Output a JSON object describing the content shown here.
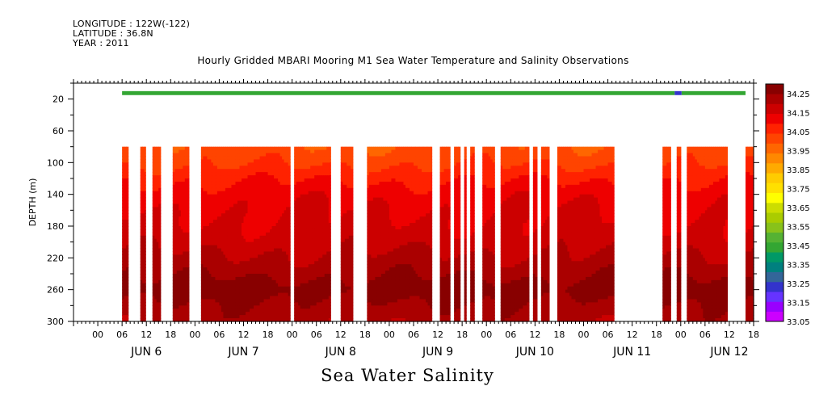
{
  "header": {
    "lines": [
      "LONGITUDE : 122W(-122)",
      "LATITUDE : 36.8N",
      "YEAR : 2011"
    ],
    "title": "Hourly Gridded MBARI Mooring M1 Sea Water Temperature and Salinity Observations"
  },
  "chart_data": {
    "type": "heatmap",
    "title": "Hourly Gridded MBARI Mooring M1 Sea Water Temperature and Salinity Observations",
    "xlabel": "",
    "ylabel": "DEPTH (m)",
    "bottom_label": "Sea Water Salinity",
    "x_unit": "hours since 2011-06-06 00:00",
    "xlim": [
      -6,
      162
    ],
    "ylim": [
      0,
      300
    ],
    "y_reversed": true,
    "y_ticks": [
      20,
      60,
      100,
      140,
      180,
      220,
      260,
      300
    ],
    "x_hour_ticks": [
      {
        "t": 0,
        "label": "00"
      },
      {
        "t": 6,
        "label": "06"
      },
      {
        "t": 12,
        "label": "12"
      },
      {
        "t": 18,
        "label": "18"
      },
      {
        "t": 24,
        "label": "00"
      },
      {
        "t": 30,
        "label": "06"
      },
      {
        "t": 36,
        "label": "12"
      },
      {
        "t": 42,
        "label": "18"
      },
      {
        "t": 48,
        "label": "00"
      },
      {
        "t": 54,
        "label": "06"
      },
      {
        "t": 60,
        "label": "12"
      },
      {
        "t": 66,
        "label": "18"
      },
      {
        "t": 72,
        "label": "00"
      },
      {
        "t": 78,
        "label": "06"
      },
      {
        "t": 84,
        "label": "12"
      },
      {
        "t": 90,
        "label": "18"
      },
      {
        "t": 96,
        "label": "00"
      },
      {
        "t": 102,
        "label": "06"
      },
      {
        "t": 108,
        "label": "12"
      },
      {
        "t": 114,
        "label": "18"
      },
      {
        "t": 120,
        "label": "00"
      },
      {
        "t": 126,
        "label": "06"
      },
      {
        "t": 132,
        "label": "12"
      },
      {
        "t": 138,
        "label": "18"
      },
      {
        "t": 144,
        "label": "00"
      },
      {
        "t": 150,
        "label": "06"
      },
      {
        "t": 156,
        "label": "12"
      },
      {
        "t": 162,
        "label": "18"
      }
    ],
    "day_labels": [
      {
        "t": 12,
        "label": "JUN  6"
      },
      {
        "t": 36,
        "label": "JUN  7"
      },
      {
        "t": 60,
        "label": "JUN  8"
      },
      {
        "t": 84,
        "label": "JUN  9"
      },
      {
        "t": 108,
        "label": "JUN 10"
      },
      {
        "t": 132,
        "label": "JUN 11"
      },
      {
        "t": 156,
        "label": "JUN 12"
      }
    ],
    "colorbar": {
      "min": 33.05,
      "max": 34.3,
      "step": 0.05,
      "labels": [
        "34.25",
        "34.15",
        "34.05",
        "33.95",
        "33.85",
        "33.75",
        "33.65",
        "33.55",
        "33.45",
        "33.35",
        "33.25",
        "33.15",
        "33.05"
      ],
      "colors": [
        "#cc00ff",
        "#9900ff",
        "#6633ff",
        "#3333cc",
        "#336699",
        "#00807f",
        "#009966",
        "#33a633",
        "#55b233",
        "#88c21a",
        "#aacc00",
        "#ccdd00",
        "#ffff00",
        "#ffe000",
        "#ffcc00",
        "#ffaa00",
        "#ff8800",
        "#ff6600",
        "#ff4400",
        "#ff2200",
        "#ee0000",
        "#cc0000",
        "#aa0000",
        "#880000"
      ]
    },
    "surface_band": {
      "depth_top": 10,
      "depth_bottom": 15,
      "value": 33.42,
      "segments": [
        [
          6,
          142.5
        ],
        [
          144.2,
          160
        ]
      ]
    },
    "valid_depth_range": [
      80,
      300
    ],
    "coverage_segments": [
      [
        6,
        7.5
      ],
      [
        10.5,
        11.8
      ],
      [
        13.5,
        15.5
      ],
      [
        18.5,
        22.5
      ],
      [
        25.5,
        47.5
      ],
      [
        48.5,
        57.5
      ],
      [
        60,
        63
      ],
      [
        66.5,
        82.5
      ],
      [
        84.5,
        87
      ],
      [
        88,
        89.5
      ],
      [
        90.5,
        91
      ],
      [
        92,
        93
      ],
      [
        95,
        98
      ],
      [
        99.5,
        106.5
      ],
      [
        107.5,
        108.5
      ],
      [
        109.5,
        111.5
      ],
      [
        113.5,
        127.5
      ],
      [
        139.5,
        141.5
      ],
      [
        143,
        144
      ],
      [
        145.5,
        155.5
      ],
      [
        160,
        162
      ]
    ],
    "depth_profile": [
      {
        "depth": 80,
        "value": 33.96
      },
      {
        "depth": 100,
        "value": 33.99
      },
      {
        "depth": 120,
        "value": 34.04
      },
      {
        "depth": 140,
        "value": 34.08
      },
      {
        "depth": 160,
        "value": 34.1
      },
      {
        "depth": 180,
        "value": 34.11
      },
      {
        "depth": 200,
        "value": 34.13
      },
      {
        "depth": 220,
        "value": 34.16
      },
      {
        "depth": 240,
        "value": 34.19
      },
      {
        "depth": 260,
        "value": 34.23
      },
      {
        "depth": 280,
        "value": 34.19
      },
      {
        "depth": 300,
        "value": 34.17
      }
    ]
  }
}
